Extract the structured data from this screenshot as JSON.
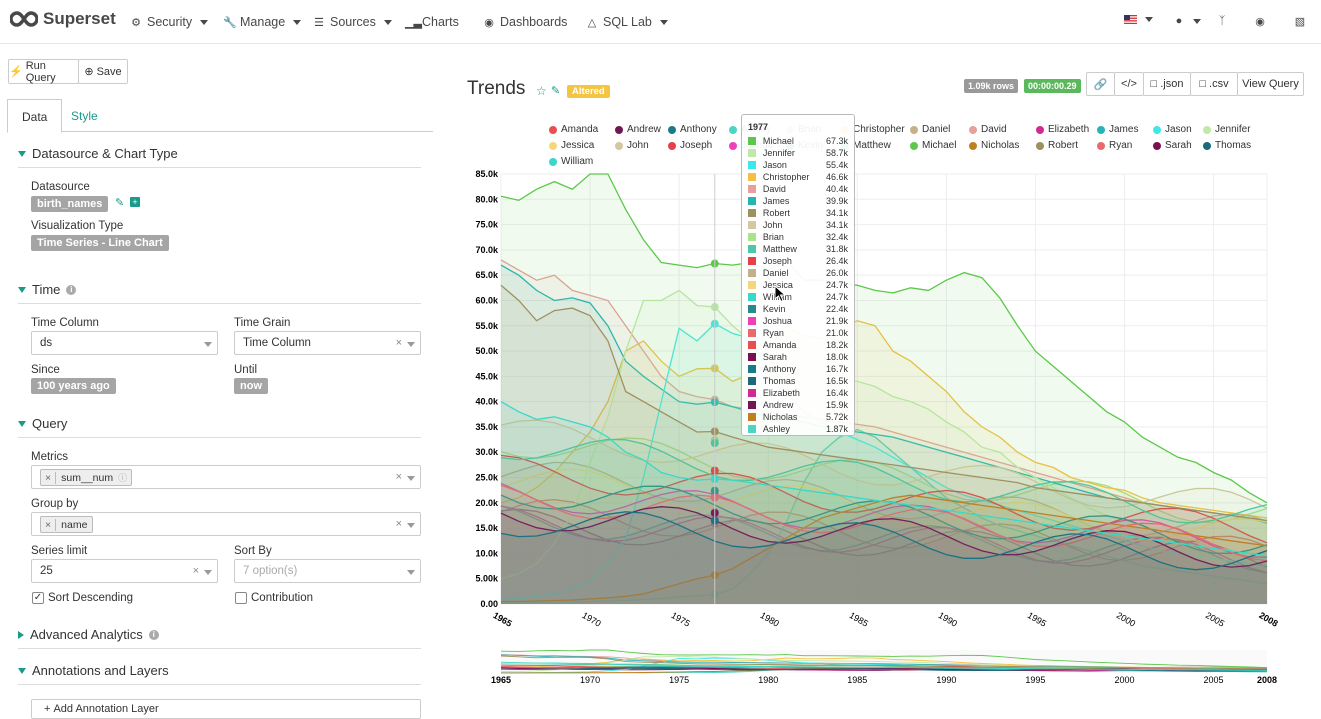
{
  "nav": {
    "brand": "Superset",
    "security": "Security",
    "manage": "Manage",
    "sources": "Sources",
    "charts": "Charts",
    "dashboards": "Dashboards",
    "sqllab": "SQL Lab"
  },
  "toolbar": {
    "run": "Run Query",
    "save": "Save"
  },
  "tabs": {
    "data": "Data",
    "style": "Style"
  },
  "sections": {
    "datasource": "Datasource & Chart Type",
    "time": "Time",
    "query": "Query",
    "advanced": "Advanced Analytics",
    "annotations": "Annotations and Layers"
  },
  "fields": {
    "datasource_label": "Datasource",
    "datasource_value": "birth_names",
    "viz_label": "Visualization Type",
    "viz_value": "Time Series - Line Chart",
    "time_column_label": "Time Column",
    "time_column_value": "ds",
    "time_grain_label": "Time Grain",
    "time_grain_value": "Time Column",
    "since_label": "Since",
    "since_value": "100 years ago",
    "until_label": "Until",
    "until_value": "now",
    "metrics_label": "Metrics",
    "metrics_value": "sum__num",
    "groupby_label": "Group by",
    "groupby_value": "name",
    "series_limit_label": "Series limit",
    "series_limit_value": "25",
    "sortby_label": "Sort By",
    "sortby_placeholder": "7 option(s)",
    "sort_desc_label": "Sort Descending",
    "contribution_label": "Contribution",
    "add_annotation": "Add Annotation Layer"
  },
  "chart": {
    "title": "Trends",
    "altered": "Altered",
    "rows": "1.09k rows",
    "time": "00:00:00.29",
    "json": ".json",
    "csv": ".csv",
    "view_query": "View Query",
    "cursor_year": 1977
  },
  "colors": {
    "accent": "#1a9a8a",
    "teal": "#00a699",
    "green": "#5cb85c"
  },
  "chart_data": {
    "type": "area",
    "title": "Trends",
    "x": [
      1965,
      1966,
      1967,
      1968,
      1969,
      1970,
      1971,
      1972,
      1973,
      1974,
      1975,
      1976,
      1977,
      1978,
      1979,
      1980,
      1981,
      1982,
      1983,
      1984,
      1985,
      1986,
      1987,
      1988,
      1989,
      1990,
      1991,
      1992,
      1993,
      1994,
      1995,
      1996,
      1997,
      1998,
      1999,
      2000,
      2001,
      2002,
      2003,
      2004,
      2005,
      2006,
      2007,
      2008
    ],
    "ylim": [
      0,
      85000
    ],
    "yticks": [
      "0.00",
      "5.00k",
      "10.0k",
      "15.0k",
      "20.0k",
      "25.0k",
      "30.0k",
      "35.0k",
      "40.0k",
      "45.0k",
      "50.0k",
      "55.0k",
      "60.0k",
      "65.0k",
      "70.0k",
      "75.0k",
      "80.0k",
      "85.0k"
    ],
    "xticks": [
      "1965",
      "1970",
      "1975",
      "1980",
      "1985",
      "1990",
      "1995",
      "2000",
      "2005",
      "2008"
    ],
    "series": [
      {
        "name": "Amanda",
        "color": "#e94f4f",
        "value_1977": "18.2k"
      },
      {
        "name": "Andrew",
        "color": "#6f1753",
        "value_1977": "15.9k"
      },
      {
        "name": "Anthony",
        "color": "#1a7a8a",
        "value_1977": "16.7k"
      },
      {
        "name": "Ashley",
        "color": "#4cd4c4",
        "value_1977": "1.87k"
      },
      {
        "name": "Brian",
        "color": "#a9e48a",
        "value_1977": "32.4k"
      },
      {
        "name": "Christopher",
        "color": "#f5c042",
        "value_1977": "46.6k"
      },
      {
        "name": "Daniel",
        "color": "#c4b08a",
        "value_1977": "26.0k"
      },
      {
        "name": "David",
        "color": "#e8a09a",
        "value_1977": "40.4k"
      },
      {
        "name": "Elizabeth",
        "color": "#d22a92",
        "value_1977": "16.4k"
      },
      {
        "name": "James",
        "color": "#28b4b4",
        "value_1977": "39.9k"
      },
      {
        "name": "Jason",
        "color": "#3ee8e8",
        "value_1977": "55.4k"
      },
      {
        "name": "Jennifer",
        "color": "#c0e8a8",
        "value_1977": "58.7k"
      },
      {
        "name": "Jessica",
        "color": "#f5d77a",
        "value_1977": "24.7k"
      },
      {
        "name": "John",
        "color": "#d4c8a0",
        "value_1977": "34.1k"
      },
      {
        "name": "Joseph",
        "color": "#e8404a",
        "value_1977": "26.4k"
      },
      {
        "name": "Joshua",
        "color": "#f040b8",
        "value_1977": "21.9k"
      },
      {
        "name": "Kevin",
        "color": "#2a8a8a",
        "value_1977": "22.4k"
      },
      {
        "name": "Matthew",
        "color": "#4ac8a8",
        "value_1977": "31.8k"
      },
      {
        "name": "Michael",
        "color": "#5cc84a",
        "value_1977": "67.3k"
      },
      {
        "name": "Nicholas",
        "color": "#c08020",
        "value_1977": "5.72k"
      },
      {
        "name": "Robert",
        "color": "#a09060",
        "value_1977": "34.1k"
      },
      {
        "name": "Ryan",
        "color": "#e86a6a",
        "value_1977": "21.0k"
      },
      {
        "name": "Sarah",
        "color": "#7a1050",
        "value_1977": "18.0k"
      },
      {
        "name": "Thomas",
        "color": "#1a6a7a",
        "value_1977": "16.5k"
      },
      {
        "name": "William",
        "color": "#3ad8c8",
        "value_1977": "24.7k"
      }
    ],
    "tooltip_order": [
      "Michael",
      "Jennifer",
      "Jason",
      "Christopher",
      "David",
      "James",
      "Robert",
      "John",
      "Brian",
      "Matthew",
      "Joseph",
      "Daniel",
      "Jessica",
      "William",
      "Kevin",
      "Joshua",
      "Ryan",
      "Amanda",
      "Sarah",
      "Anthony",
      "Thomas",
      "Elizabeth",
      "Andrew",
      "Nicholas",
      "Ashley"
    ],
    "legend_row1": [
      "Amanda",
      "Andrew",
      "Anthony",
      "Ashley",
      "Brian",
      "Christopher",
      "Daniel",
      "David",
      "Elizabeth",
      "James",
      "Jason",
      "Jennifer"
    ],
    "legend_row2": [
      "Jessica",
      "John",
      "Joseph",
      "Joshua",
      "Kevin",
      "Matthew",
      "Michael",
      "Nicholas",
      "Robert",
      "Ryan",
      "Sarah",
      "Thomas"
    ],
    "legend_row3": [
      "William"
    ],
    "michael": [
      80600,
      79800,
      82000,
      83500,
      82000,
      85000,
      85000,
      78000,
      72000,
      67500,
      67000,
      66500,
      67300,
      67000,
      67500,
      66000,
      68000,
      64000,
      64000,
      63500,
      63000,
      62000,
      61500,
      62500,
      62000,
      64000,
      65500,
      64500,
      60500,
      55000,
      50000,
      47000,
      44000,
      41000,
      38000,
      36000,
      33000,
      31000,
      29000,
      28000,
      26000,
      24500,
      22000,
      20000
    ],
    "jennifer": [
      5000,
      6000,
      8000,
      12000,
      18000,
      28000,
      37000,
      50000,
      60000,
      60000,
      62000,
      59000,
      58700,
      55000,
      52000,
      48000,
      47000,
      46000,
      45000,
      44500,
      44000,
      43000,
      41000,
      40000,
      38500,
      36000,
      34000,
      31000,
      30000,
      27000,
      25000,
      23000,
      21000,
      19000,
      17500,
      16500,
      15500,
      14500,
      13500,
      12500,
      11500,
      10500,
      9500,
      8500
    ],
    "jason": [
      1000,
      1000,
      1500,
      2000,
      3000,
      4500,
      8000,
      13000,
      25000,
      40000,
      54500,
      52000,
      55400,
      53500,
      52500,
      46500,
      42000,
      38000,
      36000,
      34000,
      32500,
      31000,
      29000,
      27000,
      25000,
      23000,
      21500,
      20500,
      19500,
      18500,
      17500,
      16500,
      15500,
      14500,
      13500,
      12500,
      11500,
      10500,
      10000,
      9500,
      9000,
      8500,
      8000,
      7500
    ],
    "christopher": [
      20000,
      21000,
      23000,
      26000,
      30000,
      34000,
      40000,
      50000,
      52000,
      48000,
      45000,
      46500,
      46600,
      44000,
      45500,
      50000,
      55000,
      53000,
      52500,
      54000,
      56000,
      55000,
      50000,
      48000,
      45000,
      42000,
      38000,
      35000,
      33000,
      30000,
      28000,
      27000,
      25000,
      24000,
      23000,
      22500,
      21000,
      20000,
      19500,
      19000,
      18500,
      18000,
      17500,
      17000
    ],
    "robert": [
      63000,
      60000,
      56000,
      58000,
      58500,
      57000,
      52000,
      42000,
      40000,
      38000,
      36000,
      34000,
      34100,
      33000,
      32000,
      31000,
      30500,
      30000,
      29500,
      29000,
      28500,
      28000,
      27500,
      27000,
      26500,
      26000,
      25500,
      25000,
      24500,
      24000,
      23000,
      22500,
      22000,
      21500,
      21000,
      20500,
      20000,
      19500,
      19000,
      18500,
      18000,
      17500,
      17000,
      16500
    ],
    "david": [
      68000,
      66000,
      64000,
      65000,
      62000,
      61000,
      60000,
      55000,
      50000,
      45000,
      42000,
      41000,
      40400,
      39000,
      38500,
      38000,
      37500,
      37000,
      36500,
      36000,
      35500,
      35000,
      34000,
      33000,
      32000,
      31000,
      30000,
      29000,
      28000,
      27000,
      26000,
      25000,
      24000,
      23000,
      22000,
      21000,
      20000,
      19500,
      19000,
      18500,
      18000,
      17500,
      17000,
      16500
    ],
    "james": [
      67000,
      65000,
      62000,
      60000,
      60500,
      59500,
      55000,
      48000,
      45000,
      42500,
      40000,
      39500,
      39900,
      39000,
      38000,
      37000,
      36500,
      36000,
      35000,
      34500,
      34000,
      33500,
      33000,
      32000,
      31000,
      30000,
      29000,
      28000,
      27000,
      26000,
      25000,
      24000,
      23000,
      22000,
      21000,
      20500,
      20000,
      19500,
      19000,
      18500,
      18000,
      17500,
      17000,
      16000
    ],
    "william": [
      40000,
      38000,
      36500,
      37000,
      36000,
      35000,
      33000,
      30000,
      28500,
      26000,
      25000,
      24500,
      24700,
      24500,
      24000,
      23500,
      23000,
      22500,
      22000,
      21500,
      21000,
      20500,
      20000,
      19500,
      19000,
      18500,
      18000,
      17500,
      17000,
      16500,
      16000,
      15500,
      15000,
      14500,
      14000,
      13500,
      13000,
      12500,
      12000,
      11500,
      11000,
      10500,
      10000,
      9500
    ],
    "nicholas": [
      500,
      500,
      600,
      700,
      800,
      1000,
      1200,
      1500,
      2000,
      3000,
      4000,
      5000,
      5720,
      7000,
      9000,
      11000,
      13000,
      15000,
      17000,
      18000,
      19000,
      20000,
      21000,
      21500,
      21000,
      20500,
      20000,
      19500,
      19000,
      18500,
      18000,
      17500,
      17000,
      16500,
      16000,
      15500,
      15000,
      14500,
      14000,
      13500,
      13000,
      12500,
      12000,
      11500
    ],
    "ashley": [
      200,
      200,
      300,
      300,
      400,
      500,
      600,
      700,
      900,
      1100,
      1400,
      1600,
      1870,
      3000,
      6000,
      10000,
      16000,
      24000,
      30000,
      33000,
      34500,
      33000,
      30000,
      27000,
      24000,
      21000,
      19000,
      17000,
      15500,
      14500,
      13500,
      12500,
      11500,
      10500,
      9500,
      8500,
      7500,
      7000,
      6500,
      6000,
      5500,
      5000,
      4500,
      4000
    ]
  }
}
